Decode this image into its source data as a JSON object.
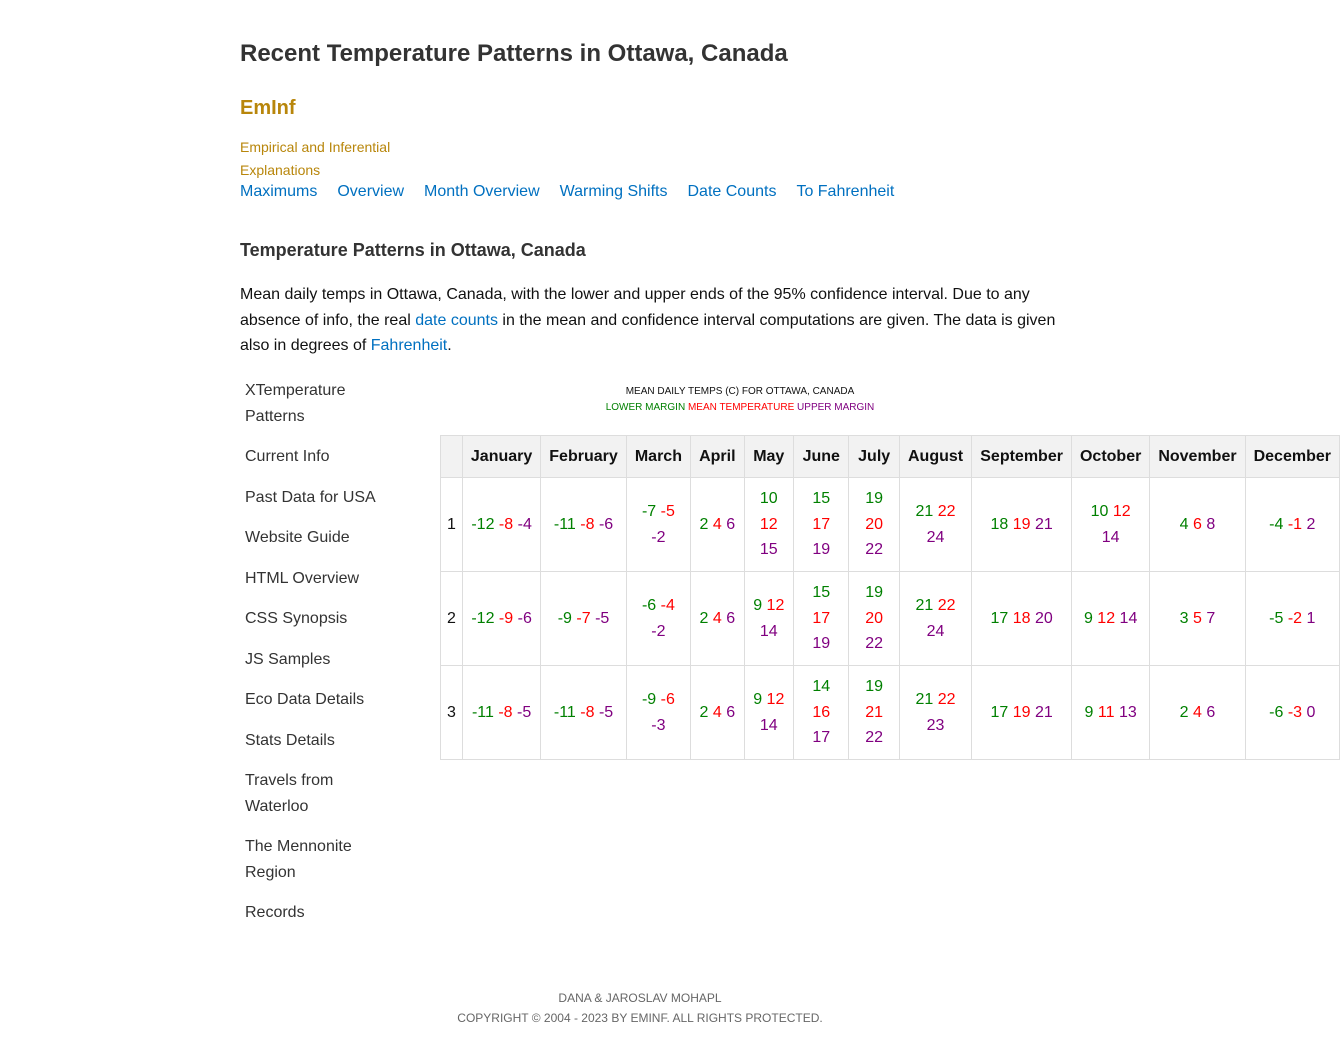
{
  "page_title": "Recent Temperature Patterns in Ottawa, Canada",
  "brand": "EmInf",
  "tagline": "Empirical and Inferential Explanations",
  "top_nav": [
    "Maximums",
    "Overview",
    "Month Overview",
    "Warming Shifts",
    "Date Counts",
    "To Fahrenheit"
  ],
  "section_title": "Temperature Patterns in Ottawa, Canada",
  "intro": {
    "part1": "Mean daily temps in Ottawa, Canada, with the lower and upper ends of the 95% confidence interval. Due to any absence of info, the real ",
    "link1": "date counts",
    "part2": " in the mean and confidence interval computations are given. The data is given also in degrees of ",
    "link2": "Fahrenheit",
    "part3": "."
  },
  "sidebar": [
    "XTemperature Patterns",
    "Current Info",
    "Past Data for USA",
    "Website Guide",
    "HTML Overview",
    "CSS Synopsis",
    "JS Samples",
    "Eco Data Details",
    "Stats Details",
    "Travels from Waterloo",
    "The Mennonite Region",
    "Records"
  ],
  "table": {
    "caption": "MEAN DAILY TEMPS (C) FOR OTTAWA, CANADA",
    "legend": {
      "lower": "LOWER MARGIN",
      "mean": "MEAN TEMPERATURE",
      "upper": "UPPER MARGIN"
    },
    "colors": {
      "lower": "#008000",
      "mean": "#ff0000",
      "upper": "#800080"
    },
    "months": [
      "January",
      "February",
      "March",
      "April",
      "May",
      "June",
      "July",
      "August",
      "September",
      "October",
      "November",
      "December"
    ],
    "rows": [
      {
        "day": "1",
        "cells": [
          [
            "-12",
            "-8",
            "-4"
          ],
          [
            "-11",
            "-8",
            "-6"
          ],
          [
            "-7",
            "-5",
            "-2"
          ],
          [
            "2",
            "4",
            "6"
          ],
          [
            "10",
            "12",
            "15"
          ],
          [
            "15",
            "17",
            "19"
          ],
          [
            "19",
            "20",
            "22"
          ],
          [
            "21",
            "22",
            "24"
          ],
          [
            "18",
            "19",
            "21"
          ],
          [
            "10",
            "12",
            "14"
          ],
          [
            "4",
            "6",
            "8"
          ],
          [
            "-4",
            "-1",
            "2"
          ]
        ]
      },
      {
        "day": "2",
        "cells": [
          [
            "-12",
            "-9",
            "-6"
          ],
          [
            "-9",
            "-7",
            "-5"
          ],
          [
            "-6",
            "-4",
            "-2"
          ],
          [
            "2",
            "4",
            "6"
          ],
          [
            "9",
            "12",
            "14"
          ],
          [
            "15",
            "17",
            "19"
          ],
          [
            "19",
            "20",
            "22"
          ],
          [
            "21",
            "22",
            "24"
          ],
          [
            "17",
            "18",
            "20"
          ],
          [
            "9",
            "12",
            "14"
          ],
          [
            "3",
            "5",
            "7"
          ],
          [
            "-5",
            "-2",
            "1"
          ]
        ]
      },
      {
        "day": "3",
        "cells": [
          [
            "-11",
            "-8",
            "-5"
          ],
          [
            "-11",
            "-8",
            "-5"
          ],
          [
            "-9",
            "-6",
            "-3"
          ],
          [
            "2",
            "4",
            "6"
          ],
          [
            "9",
            "12",
            "14"
          ],
          [
            "14",
            "16",
            "17"
          ],
          [
            "19",
            "21",
            "22"
          ],
          [
            "21",
            "22",
            "23"
          ],
          [
            "17",
            "19",
            "21"
          ],
          [
            "9",
            "11",
            "13"
          ],
          [
            "2",
            "4",
            "6"
          ],
          [
            "-6",
            "-3",
            "0"
          ]
        ]
      }
    ]
  },
  "footer": {
    "line1": "DANA & JAROSLAV MOHAPL",
    "line2": "COPYRIGHT © 2004 - 2023 BY EMINF. ALL RIGHTS PROTECTED."
  }
}
